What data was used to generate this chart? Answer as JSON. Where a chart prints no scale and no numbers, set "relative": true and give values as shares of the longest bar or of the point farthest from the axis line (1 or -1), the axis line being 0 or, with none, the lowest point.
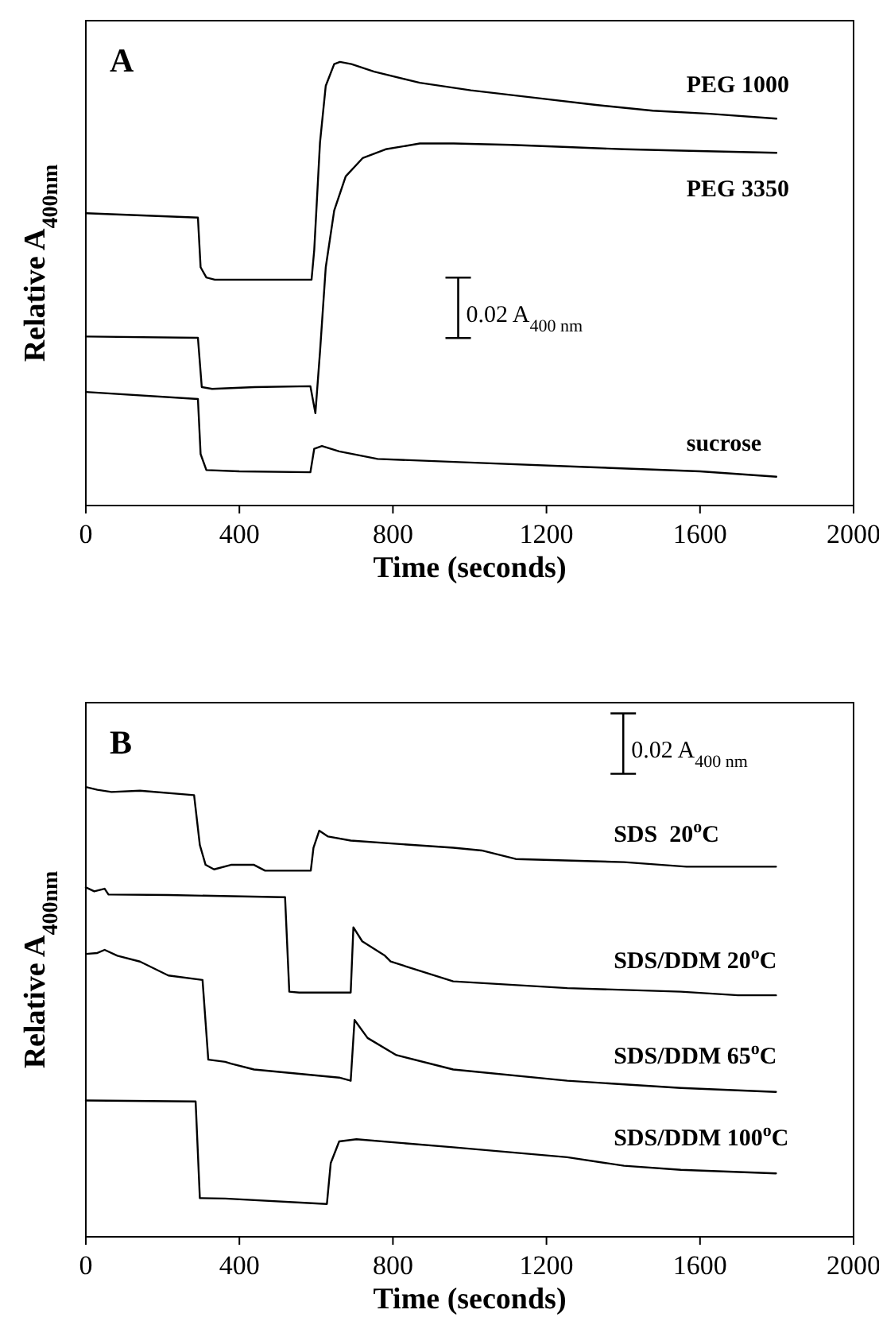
{
  "chart_data": [
    {
      "type": "line",
      "title": "A",
      "xlabel": "Time (seconds)",
      "ylabel": "Relative A$_{400nm}$",
      "xlim": [
        0,
        2000
      ],
      "xticks": [
        0,
        400,
        800,
        1200,
        1600,
        2000
      ],
      "relative": true,
      "annotations": [
        "0.02 A$_{400 nm}$"
      ],
      "series": [
        {
          "name": "PEG 1000",
          "color": "#000000",
          "x": [
            0,
            292,
            299,
            314,
            336,
            588,
            595,
            610,
            625,
            647,
            662,
            692,
            751,
            870,
            1003,
            1181,
            1329,
            1477,
            1625,
            1799
          ],
          "values": [
            0.659,
            0.649,
            0.537,
            0.514,
            0.509,
            0.509,
            0.576,
            0.818,
            0.946,
            0.995,
            1.0,
            0.995,
            0.978,
            0.953,
            0.936,
            0.918,
            0.903,
            0.89,
            0.883,
            0.872
          ]
        },
        {
          "name": "PEG 3350",
          "color": "#000000",
          "x": [
            0,
            292,
            302,
            329,
            440,
            585,
            598,
            610,
            625,
            647,
            677,
            721,
            781,
            870,
            958,
            1107,
            1255,
            1403,
            1551,
            1799
          ],
          "values": [
            0.381,
            0.378,
            0.267,
            0.263,
            0.267,
            0.269,
            0.208,
            0.346,
            0.537,
            0.665,
            0.742,
            0.783,
            0.803,
            0.816,
            0.816,
            0.813,
            0.808,
            0.803,
            0.8,
            0.795
          ]
        },
        {
          "name": "sucrose",
          "color": "#000000",
          "x": [
            0,
            292,
            299,
            314,
            400,
            585,
            595,
            615,
            660,
            760,
            1000,
            1300,
            1600,
            1799
          ],
          "values": [
            0.256,
            0.24,
            0.116,
            0.08,
            0.077,
            0.075,
            0.128,
            0.134,
            0.122,
            0.105,
            0.097,
            0.087,
            0.077,
            0.065
          ]
        }
      ]
    },
    {
      "type": "line",
      "title": "B",
      "xlabel": "Time (seconds)",
      "ylabel": "Relative A$_{400nm}$",
      "xlim": [
        0,
        2000
      ],
      "xticks": [
        0,
        400,
        800,
        1200,
        1600,
        2000
      ],
      "relative": true,
      "annotations": [
        "0.02 A$_{400 nm}$"
      ],
      "series": [
        {
          "name": "SDS  20$^{o}$C",
          "color": "#000000",
          "x": [
            0,
            30,
            67,
            141,
            282,
            297,
            312,
            334,
            378,
            438,
            467,
            586,
            593,
            608,
            631,
            690,
            957,
            1031,
            1120,
            1402,
            1565,
            1798
          ],
          "values": [
            1.0,
            0.994,
            0.989,
            0.992,
            0.982,
            0.871,
            0.827,
            0.817,
            0.827,
            0.827,
            0.814,
            0.814,
            0.865,
            0.903,
            0.89,
            0.881,
            0.865,
            0.859,
            0.84,
            0.833,
            0.823,
            0.823
          ]
        },
        {
          "name": "SDS/DDM 20$^{o}$C",
          "color": "#000000",
          "x": [
            0,
            22,
            49,
            59,
            215,
            512,
            519,
            530,
            556,
            660,
            690,
            697,
            720,
            779,
            794,
            957,
            1254,
            1550,
            1699,
            1798
          ],
          "values": [
            0.777,
            0.768,
            0.774,
            0.761,
            0.76,
            0.755,
            0.755,
            0.545,
            0.543,
            0.543,
            0.543,
            0.688,
            0.657,
            0.625,
            0.612,
            0.568,
            0.553,
            0.545,
            0.537,
            0.537
          ]
        },
        {
          "name": "SDS/DDM 65$^{o}$C",
          "color": "#000000",
          "x": [
            0,
            30,
            49,
            82,
            141,
            215,
            304,
            319,
            363,
            378,
            438,
            660,
            690,
            700,
            734,
            809,
            957,
            1254,
            1550,
            1798
          ],
          "values": [
            0.629,
            0.631,
            0.638,
            0.625,
            0.612,
            0.581,
            0.571,
            0.394,
            0.389,
            0.385,
            0.372,
            0.354,
            0.347,
            0.482,
            0.442,
            0.404,
            0.372,
            0.347,
            0.331,
            0.322
          ]
        },
        {
          "name": "SDS/DDM 100$^{o}$C",
          "color": "#000000",
          "x": [
            0,
            286,
            297,
            363,
            628,
            638,
            660,
            705,
            957,
            1254,
            1402,
            1550,
            1798
          ],
          "values": [
            0.303,
            0.301,
            0.086,
            0.085,
            0.073,
            0.164,
            0.212,
            0.217,
            0.199,
            0.177,
            0.158,
            0.149,
            0.141
          ]
        }
      ]
    }
  ]
}
